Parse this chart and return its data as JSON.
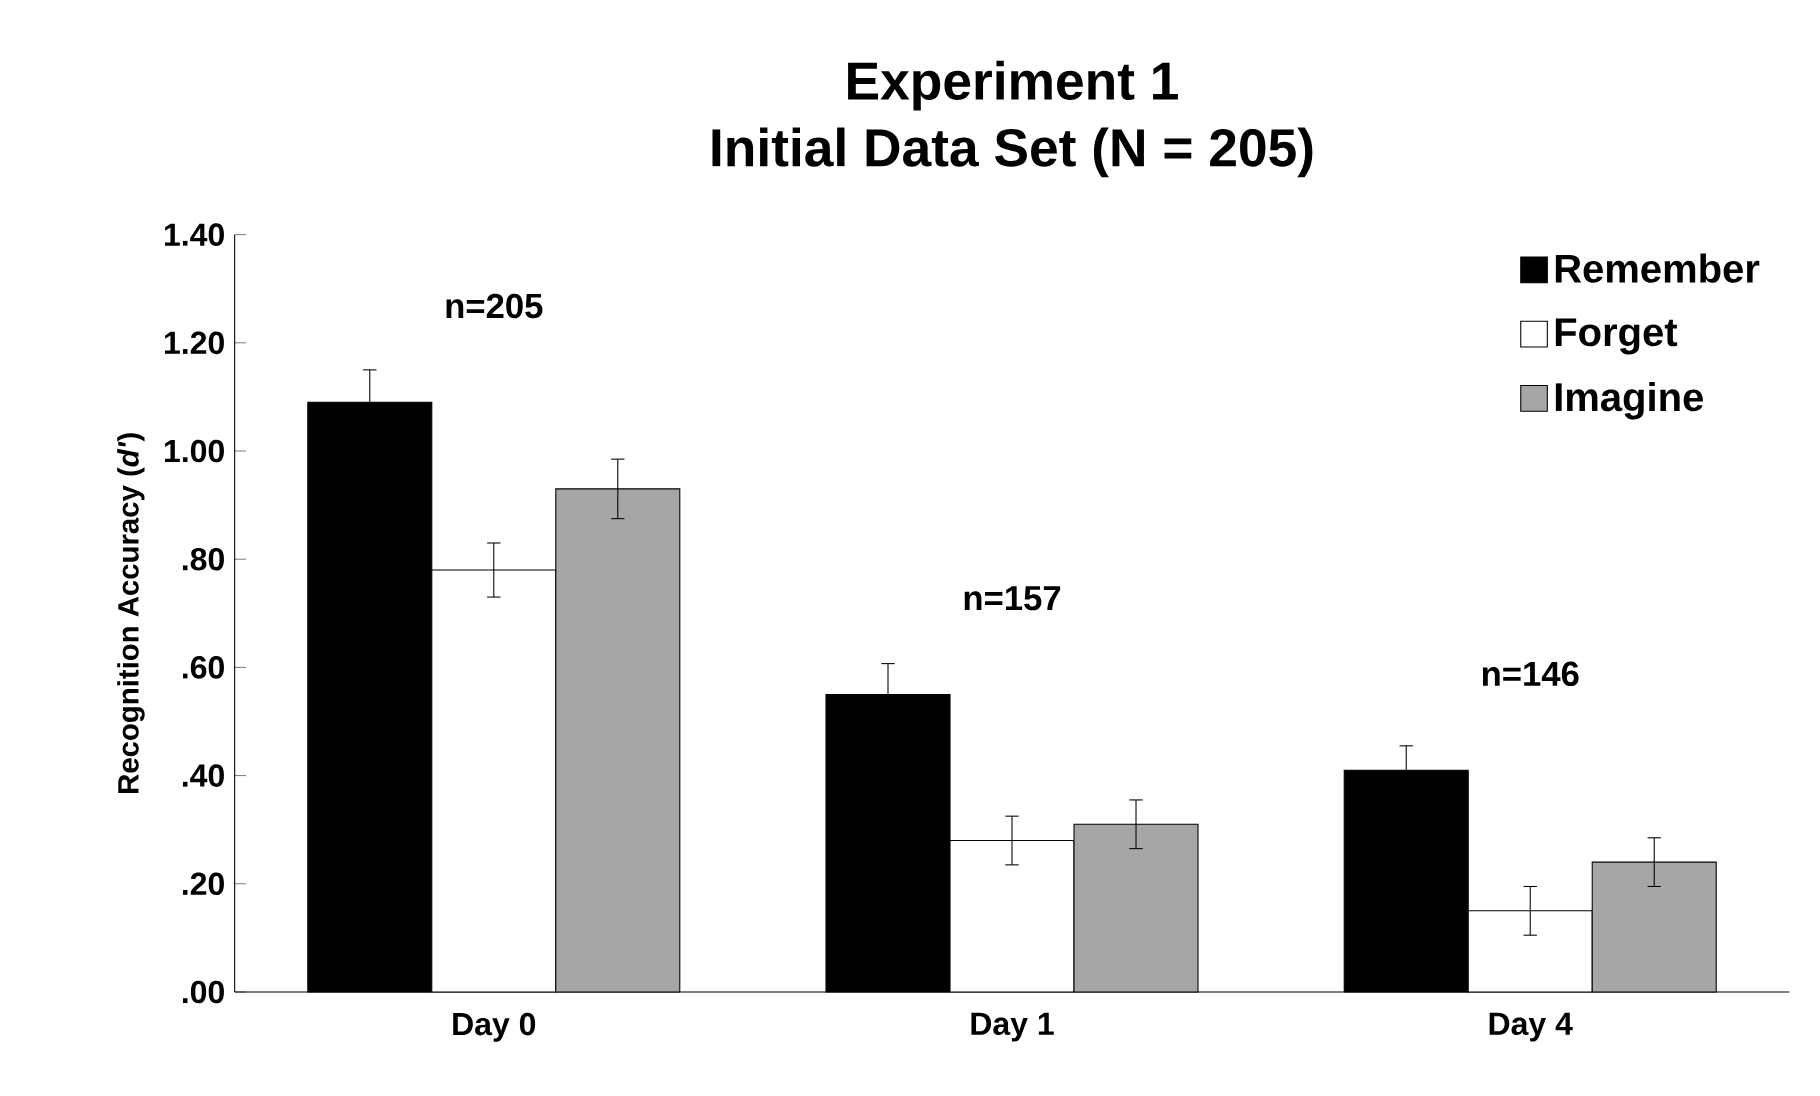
{
  "chart_data": {
    "type": "bar",
    "title": "Experiment 1",
    "subtitle": "Initial Data Set (N = 205)",
    "ylabel": "Recognition Accuracy (*d'*)",
    "categories": [
      "Day 0",
      "Day 1",
      "Day 4"
    ],
    "series": [
      {
        "name": "Remember",
        "color": "#000000",
        "values": [
          1.09,
          0.55,
          0.41
        ],
        "errors": [
          0.06,
          0.057,
          0.045
        ]
      },
      {
        "name": "Forget",
        "color": "#ffffff",
        "values": [
          0.78,
          0.28,
          0.15
        ],
        "errors": [
          0.05,
          0.045,
          0.045
        ]
      },
      {
        "name": "Imagine",
        "color": "#a6a6a6",
        "values": [
          0.93,
          0.31,
          0.24
        ],
        "errors": [
          0.055,
          0.045,
          0.045
        ]
      }
    ],
    "ylim": [
      0,
      1.4
    ],
    "yticks": [
      {
        "value": 0,
        "label": ".00"
      },
      {
        "value": 0.2,
        "label": ".20"
      },
      {
        "value": 0.4,
        "label": ".40"
      },
      {
        "value": 0.6,
        "label": ".60"
      },
      {
        "value": 0.8,
        "label": ".80"
      },
      {
        "value": 1.0,
        "label": "1.00"
      },
      {
        "value": 1.2,
        "label": "1.20"
      },
      {
        "value": 1.4,
        "label": "1.40"
      }
    ],
    "annotations": [
      "n=205",
      "n=157",
      "n=146"
    ],
    "legend": "top right"
  }
}
